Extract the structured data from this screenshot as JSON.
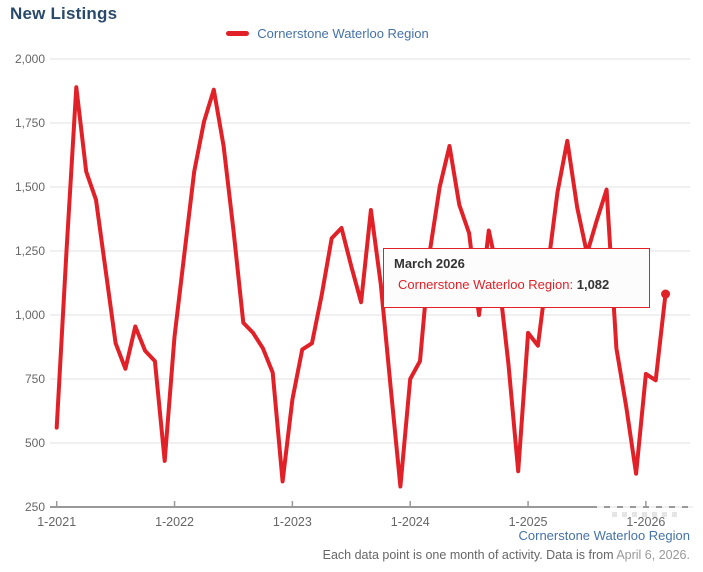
{
  "header": {
    "title": "New Listings"
  },
  "legend": {
    "label": "Cornerstone Waterloo Region"
  },
  "tooltip": {
    "title": "March 2026",
    "series_label": "Cornerstone Waterloo Region:",
    "value": "1,082"
  },
  "footer": {
    "link": "Cornerstone Waterloo Region",
    "note": "Each data point is one month of activity. Data is from",
    "date": "April 6, 2026."
  },
  "colors": {
    "series_red": "#e12127",
    "title_navy": "#2a4a6b",
    "link_blue": "#4572a7",
    "gridline": "#e0e0e0",
    "axis_line": "#999999",
    "tick_label": "#666666"
  },
  "chart_data": {
    "type": "line",
    "title": "New Listings",
    "legend_position": "top",
    "grid": true,
    "ylim": [
      250,
      2000
    ],
    "y_ticks": [
      250,
      500,
      750,
      1000,
      1250,
      1500,
      1750,
      2000
    ],
    "x_tick_labels": [
      "1-2021",
      "1-2022",
      "1-2023",
      "1-2024",
      "1-2025",
      "1-2026"
    ],
    "series": [
      {
        "name": "Cornerstone Waterloo Region",
        "color": "#e12127",
        "x": [
          "2021-01",
          "2021-02",
          "2021-03",
          "2021-04",
          "2021-05",
          "2021-06",
          "2021-07",
          "2021-08",
          "2021-09",
          "2021-10",
          "2021-11",
          "2021-12",
          "2022-01",
          "2022-02",
          "2022-03",
          "2022-04",
          "2022-05",
          "2022-06",
          "2022-07",
          "2022-08",
          "2022-09",
          "2022-10",
          "2022-11",
          "2022-12",
          "2023-01",
          "2023-02",
          "2023-03",
          "2023-04",
          "2023-05",
          "2023-06",
          "2023-07",
          "2023-08",
          "2023-09",
          "2023-10",
          "2023-11",
          "2023-12",
          "2024-01",
          "2024-02",
          "2024-03",
          "2024-04",
          "2024-05",
          "2024-06",
          "2024-07",
          "2024-08",
          "2024-09",
          "2024-10",
          "2024-11",
          "2024-12",
          "2025-01",
          "2025-02",
          "2025-03",
          "2025-04",
          "2025-05",
          "2025-06",
          "2025-07",
          "2025-08",
          "2025-09",
          "2025-10",
          "2025-11",
          "2025-12",
          "2026-01",
          "2026-02",
          "2026-03"
        ],
        "values": [
          560,
          1250,
          1890,
          1560,
          1450,
          1170,
          890,
          790,
          955,
          860,
          820,
          430,
          915,
          1240,
          1560,
          1755,
          1880,
          1660,
          1330,
          970,
          930,
          870,
          775,
          350,
          670,
          865,
          890,
          1080,
          1300,
          1340,
          1190,
          1050,
          1410,
          1120,
          720,
          330,
          750,
          820,
          1250,
          1500,
          1660,
          1430,
          1320,
          1000,
          1330,
          1150,
          810,
          390,
          930,
          880,
          1180,
          1480,
          1680,
          1420,
          1240,
          1370,
          1490,
          870,
          640,
          380,
          770,
          745,
          1082
        ]
      }
    ],
    "highlight_point": {
      "x": "2026-03",
      "label": "March 2026",
      "value": 1082
    },
    "footnote": "Each data point is one month of activity. Data is from April 6, 2026."
  }
}
